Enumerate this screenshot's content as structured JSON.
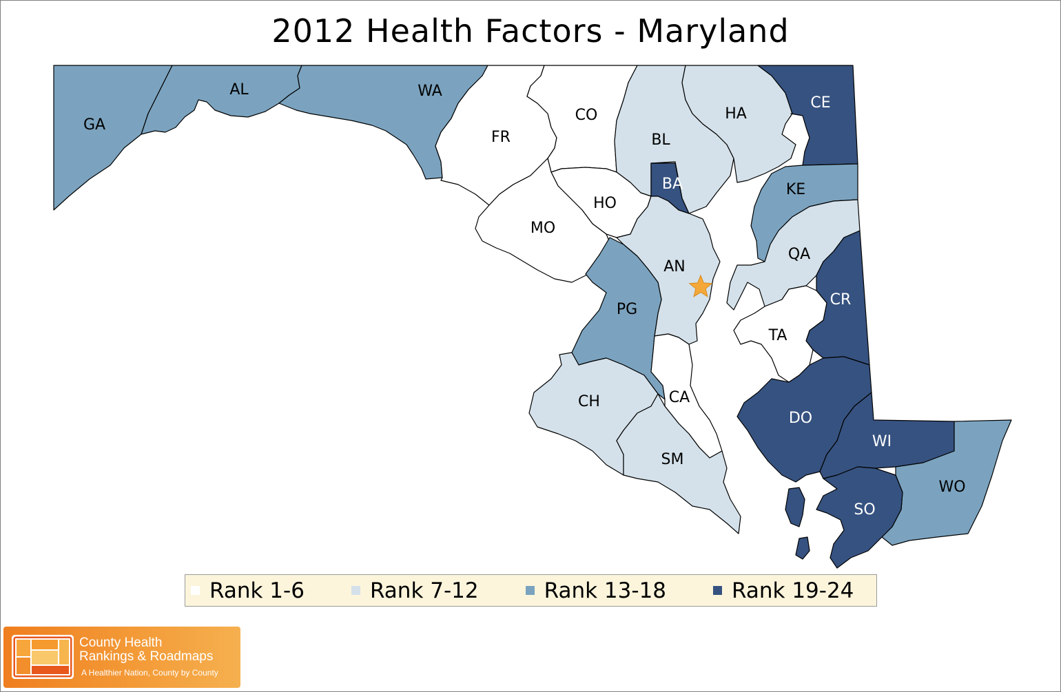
{
  "title": "2012 Health Factors - Maryland",
  "colors": {
    "rank_1_6": "#ffffff",
    "rank_7_12": "#d4e1ea",
    "rank_13_18": "#7ba3bf",
    "rank_19_24": "#365280",
    "capital_star": "#f5a83a",
    "legend_bg": "#fcf5dc"
  },
  "legend": [
    {
      "label": "Rank 1-6",
      "color": "#ffffff"
    },
    {
      "label": "Rank 7-12",
      "color": "#d4e1ea"
    },
    {
      "label": "Rank 13-18",
      "color": "#7ba3bf"
    },
    {
      "label": "Rank 19-24",
      "color": "#365280"
    }
  ],
  "counties": [
    {
      "code": "GA",
      "rank_group": "Rank 13-18"
    },
    {
      "code": "AL",
      "rank_group": "Rank 13-18"
    },
    {
      "code": "WA",
      "rank_group": "Rank 13-18"
    },
    {
      "code": "FR",
      "rank_group": "Rank 1-6"
    },
    {
      "code": "CO",
      "rank_group": "Rank 1-6"
    },
    {
      "code": "BL",
      "rank_group": "Rank 7-12"
    },
    {
      "code": "HA",
      "rank_group": "Rank 7-12"
    },
    {
      "code": "CE",
      "rank_group": "Rank 19-24"
    },
    {
      "code": "BA",
      "rank_group": "Rank 19-24"
    },
    {
      "code": "HO",
      "rank_group": "Rank 1-6"
    },
    {
      "code": "KE",
      "rank_group": "Rank 13-18"
    },
    {
      "code": "MO",
      "rank_group": "Rank 1-6"
    },
    {
      "code": "AN",
      "rank_group": "Rank 7-12"
    },
    {
      "code": "QA",
      "rank_group": "Rank 7-12"
    },
    {
      "code": "PG",
      "rank_group": "Rank 13-18"
    },
    {
      "code": "CR",
      "rank_group": "Rank 19-24"
    },
    {
      "code": "TA",
      "rank_group": "Rank 1-6"
    },
    {
      "code": "CH",
      "rank_group": "Rank 7-12"
    },
    {
      "code": "CA",
      "rank_group": "Rank 1-6"
    },
    {
      "code": "DO",
      "rank_group": "Rank 19-24"
    },
    {
      "code": "WI",
      "rank_group": "Rank 19-24"
    },
    {
      "code": "SM",
      "rank_group": "Rank 7-12"
    },
    {
      "code": "WO",
      "rank_group": "Rank 13-18"
    },
    {
      "code": "SO",
      "rank_group": "Rank 19-24"
    }
  ],
  "logo": {
    "line1": "County Health",
    "line2": "Rankings & Roadmaps",
    "tagline": "A Healthier Nation, County by County"
  }
}
